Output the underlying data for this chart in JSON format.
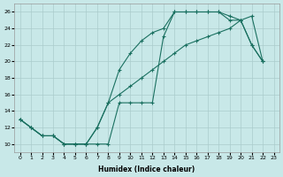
{
  "xlabel": "Humidex (Indice chaleur)",
  "bg_color": "#c8e8e8",
  "grid_color": "#aacccc",
  "line_color": "#1a7060",
  "xlim": [
    -0.5,
    23.5
  ],
  "ylim": [
    9,
    27
  ],
  "xticks": [
    0,
    1,
    2,
    3,
    4,
    5,
    6,
    7,
    8,
    9,
    10,
    11,
    12,
    13,
    14,
    15,
    16,
    17,
    18,
    19,
    20,
    21,
    22,
    23
  ],
  "yticks": [
    10,
    12,
    14,
    16,
    18,
    20,
    22,
    24,
    26
  ],
  "line1_x": [
    0,
    1,
    2,
    3,
    4,
    5,
    6,
    7,
    8,
    9,
    10,
    11,
    12,
    13,
    14,
    15,
    16,
    17,
    18,
    19,
    20,
    21,
    22
  ],
  "line1_y": [
    13,
    12,
    11,
    11,
    10,
    10,
    10,
    12,
    15,
    16,
    17,
    18,
    19,
    20,
    21,
    22,
    22.5,
    23,
    23.5,
    24,
    25,
    25.5,
    20
  ],
  "line2_x": [
    0,
    1,
    2,
    3,
    4,
    5,
    6,
    7,
    8,
    9,
    10,
    11,
    12,
    13,
    14,
    15,
    16,
    17,
    18,
    19,
    20,
    21,
    22
  ],
  "line2_y": [
    13,
    12,
    11,
    11,
    10,
    10,
    10,
    12,
    15,
    19,
    21,
    22.5,
    23.5,
    24,
    26,
    26,
    26,
    26,
    26,
    25,
    25,
    22,
    20
  ],
  "line3_x": [
    0,
    1,
    2,
    3,
    4,
    5,
    6,
    7,
    8,
    9,
    10,
    11,
    12,
    13,
    14,
    15,
    16,
    17,
    18,
    19,
    20,
    21,
    22
  ],
  "line3_y": [
    13,
    12,
    11,
    11,
    10,
    10,
    10,
    10,
    10,
    15,
    15,
    15,
    15,
    23,
    26,
    26,
    26,
    26,
    26,
    25.5,
    25,
    22,
    20
  ]
}
